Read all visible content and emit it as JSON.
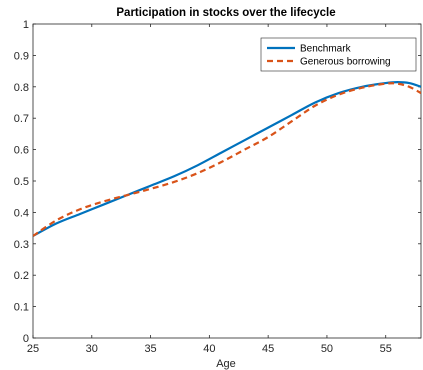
{
  "chart_data": {
    "type": "line",
    "title": "Participation in stocks over the lifecycle",
    "xlabel": "Age",
    "ylabel": "",
    "xlim": [
      25,
      58
    ],
    "ylim": [
      0,
      1
    ],
    "xticks": [
      "25",
      "30",
      "35",
      "40",
      "45",
      "50",
      "55"
    ],
    "yticks": [
      "0",
      "0.1",
      "0.2",
      "0.3",
      "0.4",
      "0.5",
      "0.6",
      "0.7",
      "0.8",
      "0.9",
      "1"
    ],
    "grid": false,
    "legend_position": "top-right",
    "series": [
      {
        "name": "Benchmark",
        "color": "#0072BD",
        "style": "solid",
        "x": [
          25,
          27,
          29,
          31,
          33,
          35,
          37,
          39,
          41,
          43,
          45,
          47,
          49,
          51,
          53,
          55,
          56,
          57,
          58
        ],
        "y": [
          0.325,
          0.365,
          0.395,
          0.425,
          0.455,
          0.485,
          0.515,
          0.55,
          0.59,
          0.63,
          0.67,
          0.71,
          0.75,
          0.78,
          0.8,
          0.812,
          0.815,
          0.812,
          0.8
        ]
      },
      {
        "name": "Generous borrowing",
        "color": "#D95319",
        "style": "dashed",
        "x": [
          25,
          27,
          29,
          31,
          33,
          35,
          37,
          39,
          41,
          43,
          45,
          47,
          49,
          51,
          53,
          55,
          56,
          57,
          58
        ],
        "y": [
          0.325,
          0.375,
          0.41,
          0.435,
          0.455,
          0.475,
          0.497,
          0.525,
          0.56,
          0.6,
          0.64,
          0.69,
          0.74,
          0.775,
          0.797,
          0.81,
          0.81,
          0.8,
          0.78
        ]
      }
    ]
  }
}
